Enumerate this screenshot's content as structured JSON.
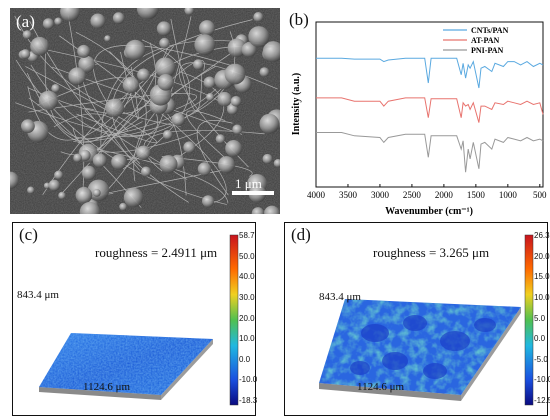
{
  "panels": {
    "a": {
      "tag": "(a)",
      "scale_bar": "1 μm"
    },
    "b": {
      "tag": "(b)"
    },
    "c": {
      "tag": "(c)",
      "roughness": "roughness = 2.4911 μm",
      "width_label": "843.4 μm",
      "length_label": "1124.6 μm",
      "colorbar_ticks": [
        "58.7",
        "50.0",
        "40.0",
        "30.0",
        "20.0",
        "10.0",
        "0.0",
        "-10.0",
        "-18.3"
      ]
    },
    "d": {
      "tag": "(d)",
      "roughness": "roughness = 3.265 μm",
      "width_label": "843.4 μm",
      "length_label": "1124.6 μm",
      "colorbar_ticks": [
        "26.3",
        "20.0",
        "15.0",
        "10.0",
        "5.0",
        "0.0",
        "-5.0",
        "-10.0",
        "-12.5"
      ]
    }
  },
  "chart_data": {
    "type": "line",
    "xlabel": "Wavenumber (cm⁻¹)",
    "ylabel": "Intensity (a.u.)",
    "xlim": [
      4000,
      450
    ],
    "x_ticks": [
      4000,
      3500,
      3000,
      2500,
      2000,
      1500,
      1000,
      500
    ],
    "x_tick_labels": [
      "4000",
      "3500",
      "3000",
      "2500",
      "2000",
      "1500",
      "1000",
      "500"
    ],
    "legend_position": "top-right",
    "series": [
      {
        "name": "CNTs/PAN",
        "color": "#5aa9e0",
        "offset": 0.78,
        "points": [
          [
            4000,
            0
          ],
          [
            3600,
            0
          ],
          [
            3400,
            -0.005
          ],
          [
            3000,
            -0.005
          ],
          [
            2940,
            -0.02
          ],
          [
            2870,
            -0.01
          ],
          [
            2600,
            0
          ],
          [
            2300,
            0
          ],
          [
            2243,
            -0.15
          ],
          [
            2200,
            0
          ],
          [
            1800,
            0
          ],
          [
            1730,
            -0.1
          ],
          [
            1700,
            -0.03
          ],
          [
            1660,
            -0.12
          ],
          [
            1620,
            -0.04
          ],
          [
            1590,
            -0.06
          ],
          [
            1540,
            -0.02
          ],
          [
            1453,
            -0.18
          ],
          [
            1420,
            -0.06
          ],
          [
            1360,
            -0.05
          ],
          [
            1250,
            -0.08
          ],
          [
            1200,
            -0.03
          ],
          [
            1070,
            -0.05
          ],
          [
            1000,
            -0.02
          ],
          [
            900,
            -0.02
          ],
          [
            800,
            -0.04
          ],
          [
            700,
            -0.02
          ],
          [
            600,
            -0.05
          ],
          [
            500,
            -0.03
          ],
          [
            450,
            -0.04
          ]
        ]
      },
      {
        "name": "AT-PAN",
        "color": "#e8736e",
        "offset": 0.54,
        "points": [
          [
            4000,
            0
          ],
          [
            3600,
            0
          ],
          [
            3400,
            -0.02
          ],
          [
            3000,
            -0.02
          ],
          [
            2940,
            -0.05
          ],
          [
            2870,
            -0.02
          ],
          [
            2600,
            0
          ],
          [
            2300,
            0
          ],
          [
            2243,
            -0.12
          ],
          [
            2200,
            -0.005
          ],
          [
            1800,
            -0.005
          ],
          [
            1730,
            -0.12
          ],
          [
            1700,
            -0.03
          ],
          [
            1660,
            -0.05
          ],
          [
            1620,
            -0.04
          ],
          [
            1590,
            -0.07
          ],
          [
            1540,
            -0.03
          ],
          [
            1453,
            -0.15
          ],
          [
            1420,
            -0.05
          ],
          [
            1360,
            -0.05
          ],
          [
            1250,
            -0.07
          ],
          [
            1200,
            -0.03
          ],
          [
            1070,
            -0.04
          ],
          [
            1000,
            -0.02
          ],
          [
            900,
            -0.03
          ],
          [
            800,
            -0.04
          ],
          [
            700,
            -0.02
          ],
          [
            600,
            -0.04
          ],
          [
            500,
            -0.03
          ],
          [
            450,
            -0.1
          ]
        ]
      },
      {
        "name": "PNI-PAN",
        "color": "#999999",
        "offset": 0.33,
        "points": [
          [
            4000,
            0
          ],
          [
            3600,
            0
          ],
          [
            3400,
            -0.02
          ],
          [
            3000,
            -0.03
          ],
          [
            2940,
            -0.06
          ],
          [
            2870,
            -0.03
          ],
          [
            2600,
            -0.01
          ],
          [
            2300,
            -0.01
          ],
          [
            2243,
            -0.15
          ],
          [
            2200,
            -0.02
          ],
          [
            1800,
            -0.02
          ],
          [
            1730,
            -0.1
          ],
          [
            1700,
            -0.05
          ],
          [
            1660,
            -0.24
          ],
          [
            1620,
            -0.1
          ],
          [
            1590,
            -0.16
          ],
          [
            1540,
            -0.06
          ],
          [
            1453,
            -0.22
          ],
          [
            1420,
            -0.07
          ],
          [
            1360,
            -0.06
          ],
          [
            1250,
            -0.1
          ],
          [
            1200,
            -0.04
          ],
          [
            1070,
            -0.06
          ],
          [
            1000,
            -0.03
          ],
          [
            900,
            -0.04
          ],
          [
            800,
            -0.05
          ],
          [
            700,
            -0.03
          ],
          [
            600,
            -0.05
          ],
          [
            500,
            -0.04
          ],
          [
            450,
            -0.05
          ]
        ]
      }
    ]
  }
}
